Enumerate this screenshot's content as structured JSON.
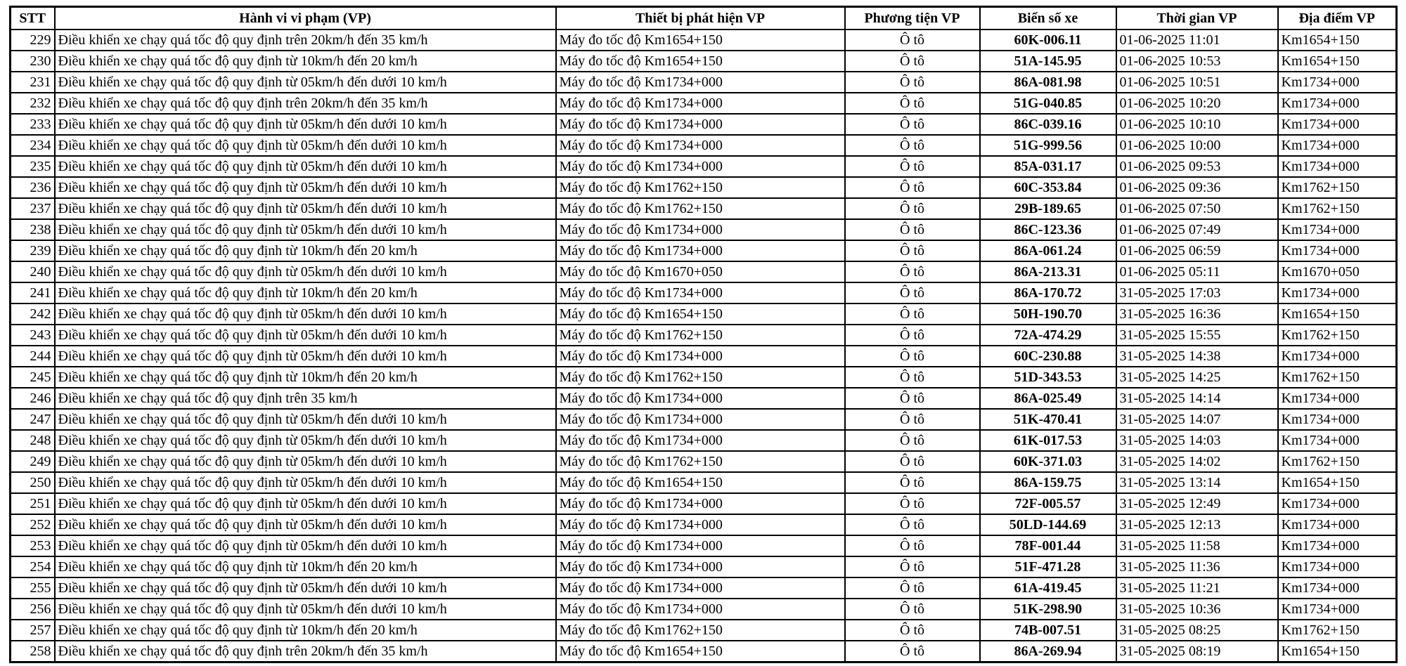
{
  "table": {
    "columns": [
      {
        "key": "stt",
        "label": "STT"
      },
      {
        "key": "violation",
        "label": "Hành vi vi phạm (VP)"
      },
      {
        "key": "device",
        "label": "Thiết bị phát hiện VP"
      },
      {
        "key": "vehicle",
        "label": "Phương tiện VP"
      },
      {
        "key": "plate",
        "label": "Biển số xe"
      },
      {
        "key": "time",
        "label": "Thời gian VP"
      },
      {
        "key": "location",
        "label": "Địa điểm VP"
      }
    ],
    "rows": [
      {
        "stt": "229",
        "violation": "Điều khiển xe chạy quá tốc độ quy định trên 20km/h đến 35 km/h",
        "device": "Máy đo tốc độ Km1654+150",
        "vehicle": "Ô tô",
        "plate": "60K-006.11",
        "time": "01-06-2025 11:01",
        "location": "Km1654+150"
      },
      {
        "stt": "230",
        "violation": "Điều khiển xe chạy quá tốc độ quy định từ 10km/h đến 20 km/h",
        "device": "Máy đo tốc độ Km1654+150",
        "vehicle": "Ô tô",
        "plate": "51A-145.95",
        "time": "01-06-2025 10:53",
        "location": "Km1654+150"
      },
      {
        "stt": "231",
        "violation": "Điều khiển xe chạy quá tốc độ quy định từ 05km/h đến dưới 10 km/h",
        "device": "Máy đo tốc độ Km1734+000",
        "vehicle": "Ô tô",
        "plate": "86A-081.98",
        "time": "01-06-2025 10:51",
        "location": "Km1734+000"
      },
      {
        "stt": "232",
        "violation": "Điều khiển xe chạy quá tốc độ quy định trên 20km/h đến 35 km/h",
        "device": "Máy đo tốc độ Km1734+000",
        "vehicle": "Ô tô",
        "plate": "51G-040.85",
        "time": "01-06-2025 10:20",
        "location": "Km1734+000"
      },
      {
        "stt": "233",
        "violation": "Điều khiển xe chạy quá tốc độ quy định từ 05km/h đến dưới 10 km/h",
        "device": "Máy đo tốc độ Km1734+000",
        "vehicle": "Ô tô",
        "plate": "86C-039.16",
        "time": "01-06-2025 10:10",
        "location": "Km1734+000"
      },
      {
        "stt": "234",
        "violation": "Điều khiển xe chạy quá tốc độ quy định từ 05km/h đến dưới 10 km/h",
        "device": "Máy đo tốc độ Km1734+000",
        "vehicle": "Ô tô",
        "plate": "51G-999.56",
        "time": "01-06-2025 10:00",
        "location": "Km1734+000"
      },
      {
        "stt": "235",
        "violation": "Điều khiển xe chạy quá tốc độ quy định từ 05km/h đến dưới 10 km/h",
        "device": "Máy đo tốc độ Km1734+000",
        "vehicle": "Ô tô",
        "plate": "85A-031.17",
        "time": "01-06-2025 09:53",
        "location": "Km1734+000"
      },
      {
        "stt": "236",
        "violation": "Điều khiển xe chạy quá tốc độ quy định từ 05km/h đến dưới 10 km/h",
        "device": "Máy đo tốc độ Km1762+150",
        "vehicle": "Ô tô",
        "plate": "60C-353.84",
        "time": "01-06-2025 09:36",
        "location": "Km1762+150"
      },
      {
        "stt": "237",
        "violation": "Điều khiển xe chạy quá tốc độ quy định từ 05km/h đến dưới 10 km/h",
        "device": "Máy đo tốc độ Km1762+150",
        "vehicle": "Ô tô",
        "plate": "29B-189.65",
        "time": "01-06-2025 07:50",
        "location": "Km1762+150"
      },
      {
        "stt": "238",
        "violation": "Điều khiển xe chạy quá tốc độ quy định từ 05km/h đến dưới 10 km/h",
        "device": "Máy đo tốc độ Km1734+000",
        "vehicle": "Ô tô",
        "plate": "86C-123.36",
        "time": "01-06-2025 07:49",
        "location": "Km1734+000"
      },
      {
        "stt": "239",
        "violation": "Điều khiển xe chạy quá tốc độ quy định từ 10km/h đến 20 km/h",
        "device": "Máy đo tốc độ Km1734+000",
        "vehicle": "Ô tô",
        "plate": "86A-061.24",
        "time": "01-06-2025 06:59",
        "location": "Km1734+000"
      },
      {
        "stt": "240",
        "violation": "Điều khiển xe chạy quá tốc độ quy định từ 05km/h đến dưới 10 km/h",
        "device": "Máy đo tốc độ Km1670+050",
        "vehicle": "Ô tô",
        "plate": "86A-213.31",
        "time": "01-06-2025 05:11",
        "location": "Km1670+050"
      },
      {
        "stt": "241",
        "violation": "Điều khiển xe chạy quá tốc độ quy định từ 10km/h đến 20 km/h",
        "device": "Máy đo tốc độ Km1734+000",
        "vehicle": "Ô tô",
        "plate": "86A-170.72",
        "time": "31-05-2025 17:03",
        "location": "Km1734+000"
      },
      {
        "stt": "242",
        "violation": "Điều khiển xe chạy quá tốc độ quy định từ 05km/h đến dưới 10 km/h",
        "device": "Máy đo tốc độ Km1654+150",
        "vehicle": "Ô tô",
        "plate": "50H-190.70",
        "time": "31-05-2025 16:36",
        "location": "Km1654+150"
      },
      {
        "stt": "243",
        "violation": "Điều khiển xe chạy quá tốc độ quy định từ 05km/h đến dưới 10 km/h",
        "device": "Máy đo tốc độ Km1762+150",
        "vehicle": "Ô tô",
        "plate": "72A-474.29",
        "time": "31-05-2025 15:55",
        "location": "Km1762+150"
      },
      {
        "stt": "244",
        "violation": "Điều khiển xe chạy quá tốc độ quy định từ 05km/h đến dưới 10 km/h",
        "device": "Máy đo tốc độ Km1734+000",
        "vehicle": "Ô tô",
        "plate": "60C-230.88",
        "time": "31-05-2025 14:38",
        "location": "Km1734+000"
      },
      {
        "stt": "245",
        "violation": "Điều khiển xe chạy quá tốc độ quy định từ 10km/h đến 20 km/h",
        "device": "Máy đo tốc độ Km1762+150",
        "vehicle": "Ô tô",
        "plate": "51D-343.53",
        "time": "31-05-2025 14:25",
        "location": "Km1762+150"
      },
      {
        "stt": "246",
        "violation": "Điều khiển xe chạy quá tốc độ quy định trên 35 km/h",
        "device": "Máy đo tốc độ Km1734+000",
        "vehicle": "Ô tô",
        "plate": "86A-025.49",
        "time": "31-05-2025 14:14",
        "location": "Km1734+000"
      },
      {
        "stt": "247",
        "violation": "Điều khiển xe chạy quá tốc độ quy định từ 05km/h đến dưới 10 km/h",
        "device": "Máy đo tốc độ Km1734+000",
        "vehicle": "Ô tô",
        "plate": "51K-470.41",
        "time": "31-05-2025 14:07",
        "location": "Km1734+000"
      },
      {
        "stt": "248",
        "violation": "Điều khiển xe chạy quá tốc độ quy định từ 05km/h đến dưới 10 km/h",
        "device": "Máy đo tốc độ Km1734+000",
        "vehicle": "Ô tô",
        "plate": "61K-017.53",
        "time": "31-05-2025 14:03",
        "location": "Km1734+000"
      },
      {
        "stt": "249",
        "violation": "Điều khiển xe chạy quá tốc độ quy định từ 05km/h đến dưới 10 km/h",
        "device": "Máy đo tốc độ Km1762+150",
        "vehicle": "Ô tô",
        "plate": "60K-371.03",
        "time": "31-05-2025 14:02",
        "location": "Km1762+150"
      },
      {
        "stt": "250",
        "violation": "Điều khiển xe chạy quá tốc độ quy định từ 05km/h đến dưới 10 km/h",
        "device": "Máy đo tốc độ Km1654+150",
        "vehicle": "Ô tô",
        "plate": "86A-159.75",
        "time": "31-05-2025 13:14",
        "location": "Km1654+150"
      },
      {
        "stt": "251",
        "violation": "Điều khiển xe chạy quá tốc độ quy định từ 05km/h đến dưới 10 km/h",
        "device": "Máy đo tốc độ Km1734+000",
        "vehicle": "Ô tô",
        "plate": "72F-005.57",
        "time": "31-05-2025 12:49",
        "location": "Km1734+000"
      },
      {
        "stt": "252",
        "violation": "Điều khiển xe chạy quá tốc độ quy định từ 05km/h đến dưới 10 km/h",
        "device": "Máy đo tốc độ Km1734+000",
        "vehicle": "Ô tô",
        "plate": "50LD-144.69",
        "time": "31-05-2025 12:13",
        "location": "Km1734+000"
      },
      {
        "stt": "253",
        "violation": "Điều khiển xe chạy quá tốc độ quy định từ 05km/h đến dưới 10 km/h",
        "device": "Máy đo tốc độ Km1734+000",
        "vehicle": "Ô tô",
        "plate": "78F-001.44",
        "time": "31-05-2025 11:58",
        "location": "Km1734+000"
      },
      {
        "stt": "254",
        "violation": "Điều khiển xe chạy quá tốc độ quy định từ 10km/h đến 20 km/h",
        "device": "Máy đo tốc độ Km1734+000",
        "vehicle": "Ô tô",
        "plate": "51F-471.28",
        "time": "31-05-2025 11:36",
        "location": "Km1734+000"
      },
      {
        "stt": "255",
        "violation": "Điều khiển xe chạy quá tốc độ quy định từ 05km/h đến dưới 10 km/h",
        "device": "Máy đo tốc độ Km1734+000",
        "vehicle": "Ô tô",
        "plate": "61A-419.45",
        "time": "31-05-2025 11:21",
        "location": "Km1734+000"
      },
      {
        "stt": "256",
        "violation": "Điều khiển xe chạy quá tốc độ quy định từ 05km/h đến dưới 10 km/h",
        "device": "Máy đo tốc độ Km1734+000",
        "vehicle": "Ô tô",
        "plate": "51K-298.90",
        "time": "31-05-2025 10:36",
        "location": "Km1734+000"
      },
      {
        "stt": "257",
        "violation": "Điều khiển xe chạy quá tốc độ quy định từ 10km/h đến 20 km/h",
        "device": "Máy đo tốc độ Km1762+150",
        "vehicle": "Ô tô",
        "plate": "74B-007.51",
        "time": "31-05-2025 08:25",
        "location": "Km1762+150"
      },
      {
        "stt": "258",
        "violation": "Điều khiển xe chạy quá tốc độ quy định trên 20km/h đến 35 km/h",
        "device": "Máy đo tốc độ Km1654+150",
        "vehicle": "Ô tô",
        "plate": "86A-269.94",
        "time": "31-05-2025 08:19",
        "location": "Km1654+150"
      }
    ]
  },
  "style": {
    "grid_color": "#000000",
    "background_color": "#ffffff",
    "text_color": "#000000"
  }
}
